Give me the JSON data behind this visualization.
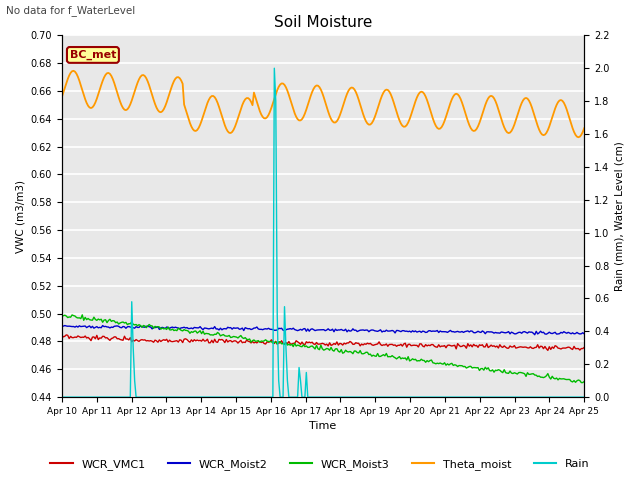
{
  "title": "Soil Moisture",
  "subtitle": "No data for f_WaterLevel",
  "xlabel": "Time",
  "ylabel_left": "VWC (m3/m3)",
  "ylabel_right": "Rain (mm), Water Level (cm)",
  "ylim_left": [
    0.44,
    0.7
  ],
  "ylim_right": [
    0.0,
    2.2
  ],
  "yticks_left": [
    0.44,
    0.46,
    0.48,
    0.5,
    0.52,
    0.54,
    0.56,
    0.58,
    0.6,
    0.62,
    0.64,
    0.66,
    0.68,
    0.7
  ],
  "yticks_right": [
    0.0,
    0.2,
    0.4,
    0.6,
    0.8,
    1.0,
    1.2,
    1.4,
    1.6,
    1.8,
    2.0,
    2.2
  ],
  "xtick_labels": [
    "Apr 10",
    "Apr 11",
    "Apr 12",
    "Apr 13",
    "Apr 14",
    "Apr 15",
    "Apr 16",
    "Apr 17",
    "Apr 18",
    "Apr 19",
    "Apr 20",
    "Apr 21",
    "Apr 22",
    "Apr 23",
    "Apr 24",
    "Apr 25"
  ],
  "fig_bg": "#ffffff",
  "plot_bg": "#e8e8e8",
  "grid_color": "#ffffff",
  "colors": {
    "WCR_VMC1": "#cc0000",
    "WCR_Moist2": "#0000cc",
    "WCR_Moist3": "#00bb00",
    "Theta_moist": "#ff9900",
    "Rain": "#00cccc"
  },
  "bc_met_bg": "#ffff99",
  "bc_met_fg": "#990000"
}
